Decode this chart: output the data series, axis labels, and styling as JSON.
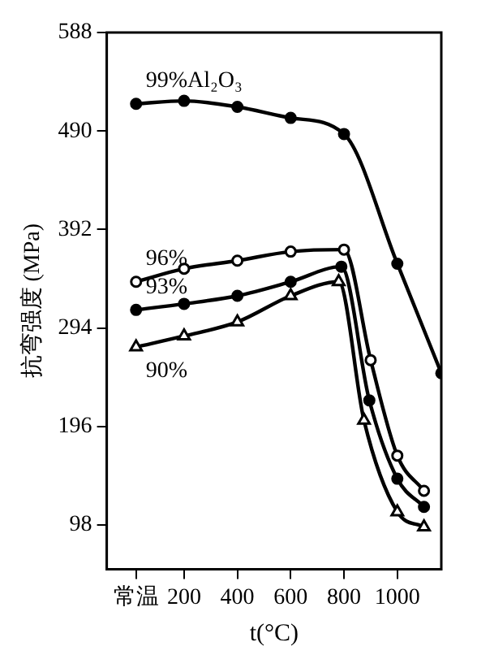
{
  "chart_data": {
    "type": "line",
    "xlabel": "t(°C)",
    "ylabel": "抗弯强度 (MPa)",
    "xlim": [
      -90,
      1165
    ],
    "ylim": [
      54,
      588
    ],
    "xticks": [
      {
        "value": 20,
        "label": "常温"
      },
      200,
      400,
      600,
      800,
      1000
    ],
    "yticks": [
      98,
      196,
      294,
      392,
      490,
      588
    ],
    "grid": false,
    "legend": false,
    "line_style": "solid",
    "series": [
      {
        "name": "99%Al₂O₃",
        "color": "#000000",
        "marker": "circle",
        "x": [
          20,
          200,
          400,
          600,
          800,
          1000,
          1165
        ],
        "values": [
          517,
          520,
          514,
          503,
          487,
          358,
          249
        ]
      },
      {
        "name": "96%",
        "color": "#000000",
        "marker": "circle_open",
        "x": [
          20,
          200,
          400,
          600,
          800,
          900,
          1000,
          1100
        ],
        "values": [
          340,
          353,
          361,
          370,
          372,
          262,
          167,
          132
        ]
      },
      {
        "name": "93%",
        "color": "#000000",
        "marker": "circle",
        "x": [
          20,
          200,
          400,
          600,
          790,
          895,
          1000,
          1100
        ],
        "values": [
          312,
          318,
          326,
          340,
          355,
          222,
          144,
          116
        ]
      },
      {
        "name": "90%",
        "color": "#000000",
        "marker": "triangle_open",
        "x": [
          20,
          200,
          400,
          600,
          780,
          875,
          1000,
          1100
        ],
        "values": [
          275,
          286,
          300,
          326,
          340,
          202,
          111,
          96
        ]
      }
    ]
  }
}
